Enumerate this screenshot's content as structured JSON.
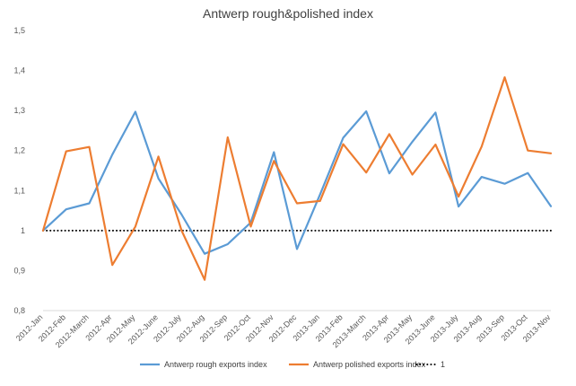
{
  "chart_data": {
    "type": "line",
    "title": "Antwerp rough&polished index",
    "xlabel": "",
    "ylabel": "",
    "ylim": [
      0.8,
      1.5
    ],
    "yticks": [
      "0,8",
      "0,9",
      "1",
      "1,1",
      "1,2",
      "1,3",
      "1,4",
      "1,5"
    ],
    "grid": false,
    "legend_position": "bottom",
    "categories": [
      "2012-Jan",
      "2012-Feb",
      "2012-March",
      "2012-Apr",
      "2012-May",
      "2012-June",
      "2012-July",
      "2012-Aug",
      "2012-Sep",
      "2012-Oct",
      "2012-Nov",
      "2012-Dec",
      "2013-Jan",
      "2013-Feb",
      "2013-March",
      "2013-Apr",
      "2013-May",
      "2013-June",
      "2013-July",
      "2013-Aug",
      "2013-Sep",
      "2013-Oct",
      "2013-Nov"
    ],
    "series": [
      {
        "name": "Antwerp rough exports index",
        "color": "#5b9bd5",
        "style": "solid",
        "values": [
          1.0,
          1.053,
          1.068,
          1.19,
          1.297,
          1.13,
          1.04,
          0.942,
          0.966,
          1.02,
          1.196,
          0.954,
          1.09,
          1.232,
          1.298,
          1.143,
          1.222,
          1.295,
          1.06,
          1.134,
          1.117,
          1.144,
          1.061
        ]
      },
      {
        "name": "Antwerp polished exports index",
        "color": "#ed7d31",
        "style": "solid",
        "values": [
          1.0,
          1.198,
          1.209,
          0.914,
          1.01,
          1.185,
          1.0,
          0.877,
          1.233,
          1.01,
          1.174,
          1.068,
          1.074,
          1.216,
          1.145,
          1.241,
          1.14,
          1.215,
          1.085,
          1.21,
          1.383,
          1.2,
          1.193
        ]
      },
      {
        "name": "1",
        "color": "#000000",
        "style": "dotted",
        "values": [
          1,
          1,
          1,
          1,
          1,
          1,
          1,
          1,
          1,
          1,
          1,
          1,
          1,
          1,
          1,
          1,
          1,
          1,
          1,
          1,
          1,
          1,
          1
        ]
      }
    ]
  }
}
